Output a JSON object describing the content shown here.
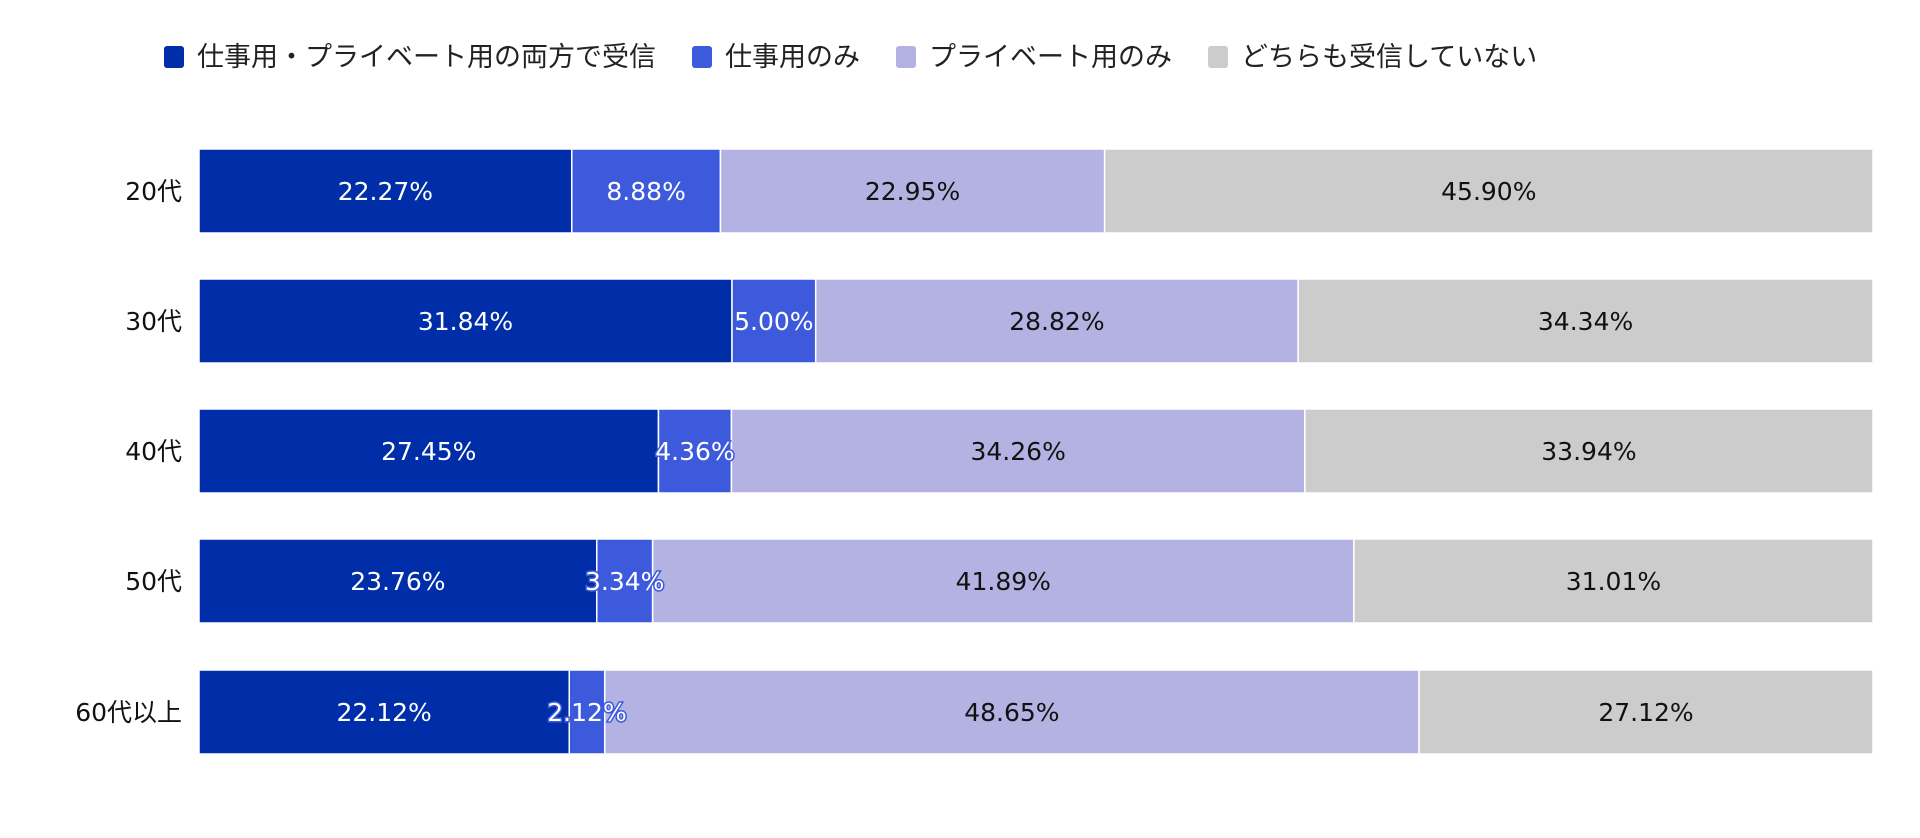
{
  "chart_data": {
    "type": "bar",
    "orientation": "horizontal",
    "stacked": "percent",
    "title": "",
    "xlabel": "",
    "ylabel": "",
    "legend_position": "top",
    "grid": false,
    "categories": [
      "20代",
      "30代",
      "40代",
      "50代",
      "60代以上"
    ],
    "series": [
      {
        "name": "仕事用・プライベート用の両方で受信",
        "color": "#002EA8",
        "label_color": "#ffffff",
        "values": [
          22.27,
          31.84,
          27.45,
          23.76,
          22.12
        ],
        "labels": [
          "22.27%",
          "31.84%",
          "27.45%",
          "23.76%",
          "22.12%"
        ]
      },
      {
        "name": "仕事用のみ",
        "color": "#3E5ADC",
        "label_color": "#ffffff",
        "values": [
          8.88,
          5.0,
          4.36,
          3.34,
          2.12
        ],
        "labels": [
          "8.88%",
          "5.00%",
          "4.36%",
          "3.34%",
          "2.12%"
        ]
      },
      {
        "name": "プライベート用のみ",
        "color": "#B4B2E2",
        "label_color": "#111111",
        "values": [
          22.95,
          28.82,
          34.26,
          41.89,
          48.65
        ],
        "labels": [
          "22.95%",
          "28.82%",
          "34.26%",
          "41.89%",
          "48.65%"
        ]
      },
      {
        "name": "どちらも受信していない",
        "color": "#CCCCCC",
        "label_color": "#111111",
        "values": [
          45.9,
          34.34,
          33.94,
          31.01,
          27.12
        ],
        "labels": [
          "45.90%",
          "34.34%",
          "33.94%",
          "31.01%",
          "27.12%"
        ]
      }
    ]
  }
}
